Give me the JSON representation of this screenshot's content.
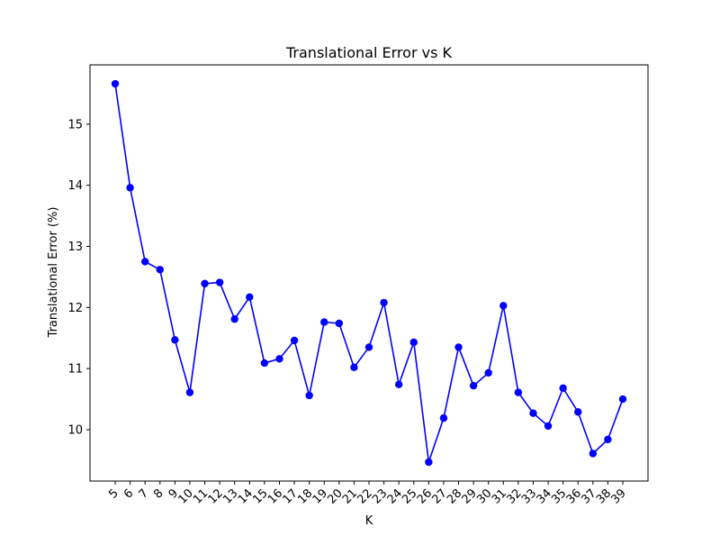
{
  "chart_data": {
    "type": "line",
    "title": "Translational Error vs K",
    "xlabel": "K",
    "ylabel": "Translational Error (%)",
    "categories": [
      "5",
      "6",
      "7",
      "8",
      "9",
      "10",
      "11",
      "12",
      "13",
      "14",
      "15",
      "16",
      "17",
      "18",
      "19",
      "20",
      "21",
      "22",
      "23",
      "24",
      "25",
      "26",
      "27",
      "28",
      "29",
      "30",
      "31",
      "32",
      "33",
      "34",
      "35",
      "36",
      "37",
      "38",
      "39"
    ],
    "series": [
      {
        "values": [
          15.66,
          13.96,
          12.75,
          12.62,
          11.47,
          10.61,
          12.39,
          12.41,
          11.81,
          12.17,
          11.09,
          11.16,
          11.46,
          10.56,
          11.76,
          11.74,
          11.02,
          11.35,
          12.08,
          10.74,
          11.43,
          9.47,
          10.19,
          11.35,
          10.72,
          10.93,
          12.03,
          10.61,
          10.27,
          10.06,
          10.68,
          10.29,
          9.61,
          9.84,
          10.5
        ]
      }
    ],
    "yticks": [
      10,
      11,
      12,
      13,
      14,
      15
    ],
    "ylim": [
      9.16,
      15.97
    ],
    "grid": false,
    "colors": {
      "line": "#0000ff",
      "marker": "#0000ff",
      "axes": "#000000"
    }
  }
}
